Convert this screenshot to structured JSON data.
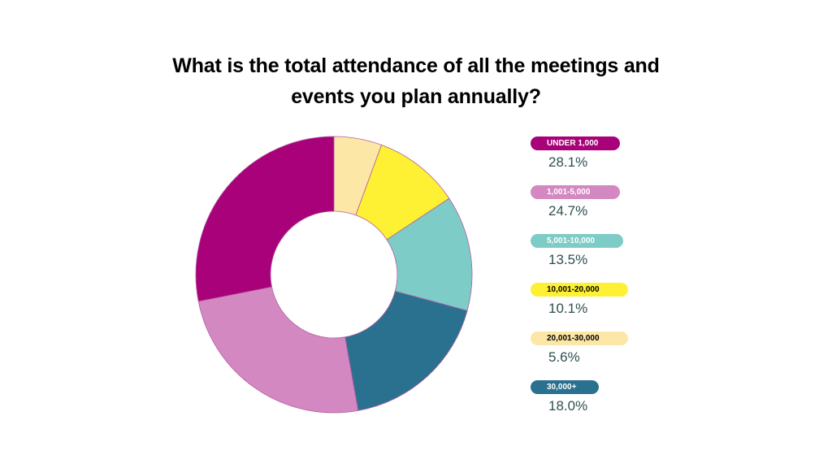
{
  "chart_data": {
    "type": "pie",
    "title_lines": [
      "What is the total attendance of all the meetings and",
      "events you plan annually?"
    ],
    "categories": [
      "UNDER 1,000",
      "1,001-5,000",
      "5,001-10,000",
      "10,001-20,000",
      "20,001-30,000",
      "30,000+"
    ],
    "values": [
      28.1,
      24.7,
      13.5,
      10.1,
      5.6,
      18.0
    ],
    "value_labels": [
      "28.1%",
      "24.7%",
      "13.5%",
      "10.1%",
      "5.6%",
      "18.0%"
    ],
    "colors": [
      "#A8017A",
      "#D388C2",
      "#7ECCC7",
      "#FEF033",
      "#FCE7A6",
      "#2A7190"
    ],
    "label_text_colors": [
      "#ffffff",
      "#ffffff",
      "#ffffff",
      "#000000",
      "#000000",
      "#ffffff"
    ],
    "drawing_order": [
      4,
      3,
      2,
      5,
      1,
      0
    ],
    "donut": true,
    "legend_position": "right"
  }
}
